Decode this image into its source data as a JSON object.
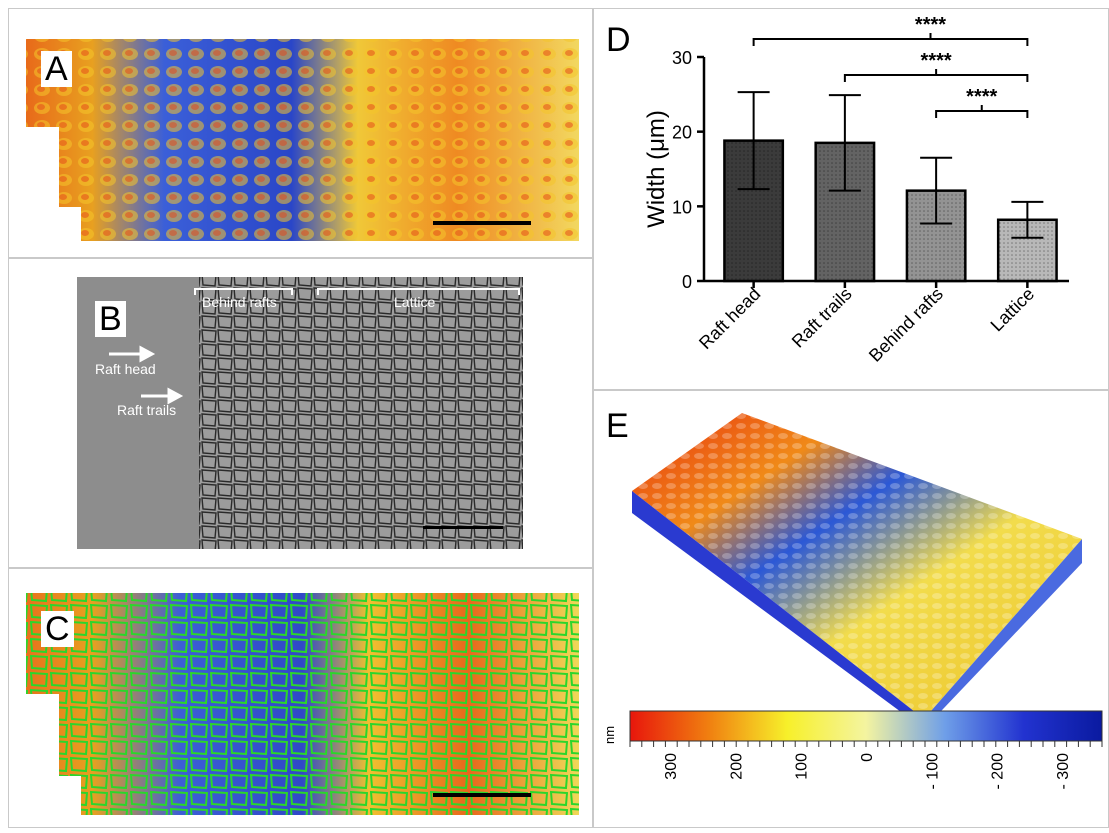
{
  "panels": {
    "A": {
      "label": "A"
    },
    "B": {
      "label": "B",
      "annotations": {
        "behind_rafts": "Behind rafts",
        "lattice": "Lattice",
        "raft_head": "Raft head",
        "raft_trails": "Raft trails"
      }
    },
    "C": {
      "label": "C"
    },
    "D": {
      "label": "D"
    },
    "E": {
      "label": "E"
    }
  },
  "chart_data": {
    "type": "bar",
    "title": "",
    "ylabel": "Width (μm)",
    "xlabel": "",
    "categories": [
      "Raft head",
      "Raft trails",
      "Behind rafts",
      "Lattice"
    ],
    "values": [
      18.8,
      18.5,
      12.1,
      8.2
    ],
    "errors": [
      6.5,
      6.4,
      4.4,
      2.4
    ],
    "yticks": [
      "0",
      "10",
      "20",
      "30"
    ],
    "ylim": [
      0,
      30
    ],
    "colors": [
      "#3b3b3b",
      "#636363",
      "#939393",
      "#b8b8b8"
    ],
    "significance": [
      {
        "from": 0,
        "to": 3,
        "label": "****"
      },
      {
        "from": 1,
        "to": 3,
        "label": "****"
      },
      {
        "from": 2,
        "to": 3,
        "label": "****"
      }
    ]
  },
  "colorbar": {
    "unit": "nm",
    "ticks": [
      "300",
      "200",
      "100",
      "0",
      "- 100",
      "- 200",
      "- 300"
    ],
    "colors": [
      "#e8160c",
      "#f07f10",
      "#f7f02a",
      "#f4f4a0",
      "#6f9fe8",
      "#2233d0",
      "#0a1aa0"
    ]
  }
}
